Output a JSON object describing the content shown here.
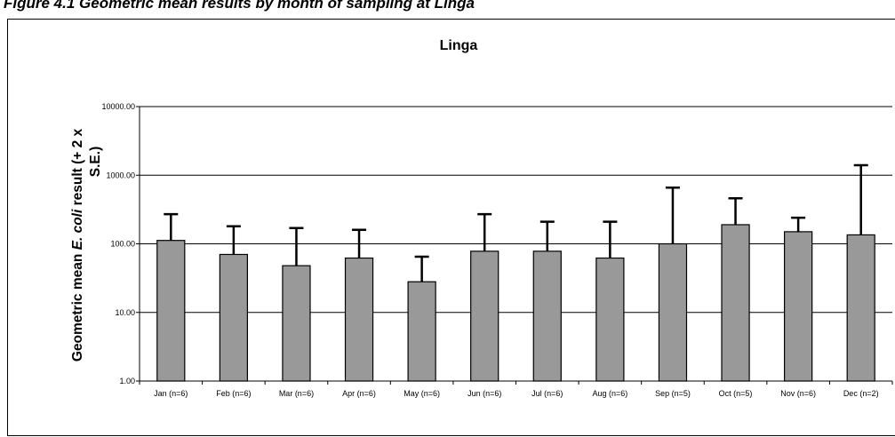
{
  "caption": "Figure 4.1 Geometric mean results by month of sampling at Linga",
  "chart_data": {
    "type": "bar",
    "title": "Linga",
    "ylabel": {
      "parts": [
        {
          "text": "Geometric mean ",
          "italic": false
        },
        {
          "text": "E. coli",
          "italic": true
        },
        {
          "text": " result (+ 2 x",
          "italic": false
        }
      ],
      "line2": "S.E.)"
    },
    "xlabel": "",
    "yscale": "log",
    "ylim": [
      1,
      10000
    ],
    "yticks": [
      1,
      10,
      100,
      1000,
      10000
    ],
    "ytick_labels": [
      "1.00",
      "10.00",
      "100.00",
      "1000.00",
      "10000.00"
    ],
    "grid": true,
    "categories": [
      "Jan (n=6)",
      "Feb (n=6)",
      "Mar (n=6)",
      "Apr (n=6)",
      "May (n=6)",
      "Jun (n=6)",
      "Jul (n=6)",
      "Aug (n=6)",
      "Sep (n=5)",
      "Oct (n=5)",
      "Nov (n=6)",
      "Dec (n=2)"
    ],
    "values": [
      112,
      70,
      48,
      62,
      28,
      78,
      78,
      62,
      100,
      190,
      150,
      135
    ],
    "error_upper": [
      270,
      180,
      170,
      160,
      65,
      270,
      210,
      210,
      660,
      460,
      240,
      1400
    ],
    "colors": {
      "bar_fill": "#999999",
      "bar_stroke": "#000000",
      "gridline": "#000000",
      "error_bar": "#000000"
    }
  }
}
